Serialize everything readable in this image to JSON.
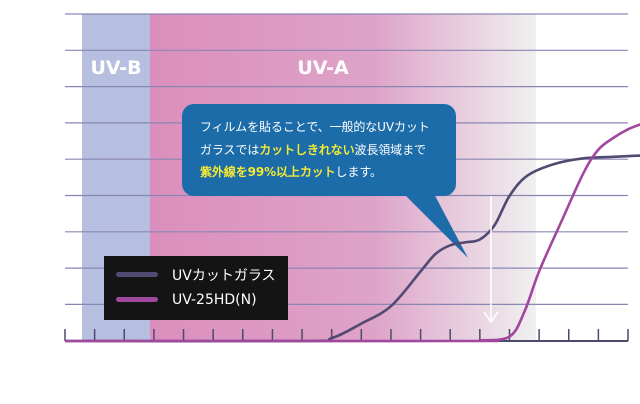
{
  "chart_data": {
    "type": "line",
    "bands": [
      {
        "label": "UV-B",
        "color": "#b6bfe0"
      },
      {
        "label": "UV-A",
        "color": "#db8ebd"
      }
    ],
    "series": [
      {
        "name": "UVカットガラス",
        "color": "#514a72",
        "points": [
          [
            0,
            0
          ],
          [
            8,
            0
          ],
          [
            9,
            1
          ],
          [
            10,
            6
          ],
          [
            11,
            12
          ],
          [
            12,
            24
          ],
          [
            12.5,
            30
          ],
          [
            13,
            33
          ],
          [
            13.5,
            34
          ],
          [
            14,
            35
          ],
          [
            14.5,
            40
          ],
          [
            15,
            50
          ],
          [
            15.6,
            57
          ],
          [
            16.5,
            61
          ],
          [
            17.5,
            63
          ],
          [
            18.5,
            63.5
          ],
          [
            19.5,
            64
          ]
        ]
      },
      {
        "name": "UV-25HD(N)",
        "color": "#a0479e",
        "points": [
          [
            0,
            0
          ],
          [
            13.5,
            0
          ],
          [
            14,
            0.2
          ],
          [
            15,
            1.5
          ],
          [
            15.5,
            10
          ],
          [
            16,
            24
          ],
          [
            16.7,
            40
          ],
          [
            17.5,
            58
          ],
          [
            18,
            66
          ],
          [
            18.5,
            70
          ],
          [
            19,
            73
          ],
          [
            19.5,
            75
          ]
        ]
      }
    ],
    "callout": {
      "line1": "フィルムを貼ることで、一般的なUVカット",
      "line2_pre": "ガラスでは",
      "line2_hl": "カットしきれない",
      "line2_post": "波長領域まで",
      "line3_hl": "紫外線を99%以上カット",
      "line3_post": "します。"
    },
    "grid": true
  }
}
